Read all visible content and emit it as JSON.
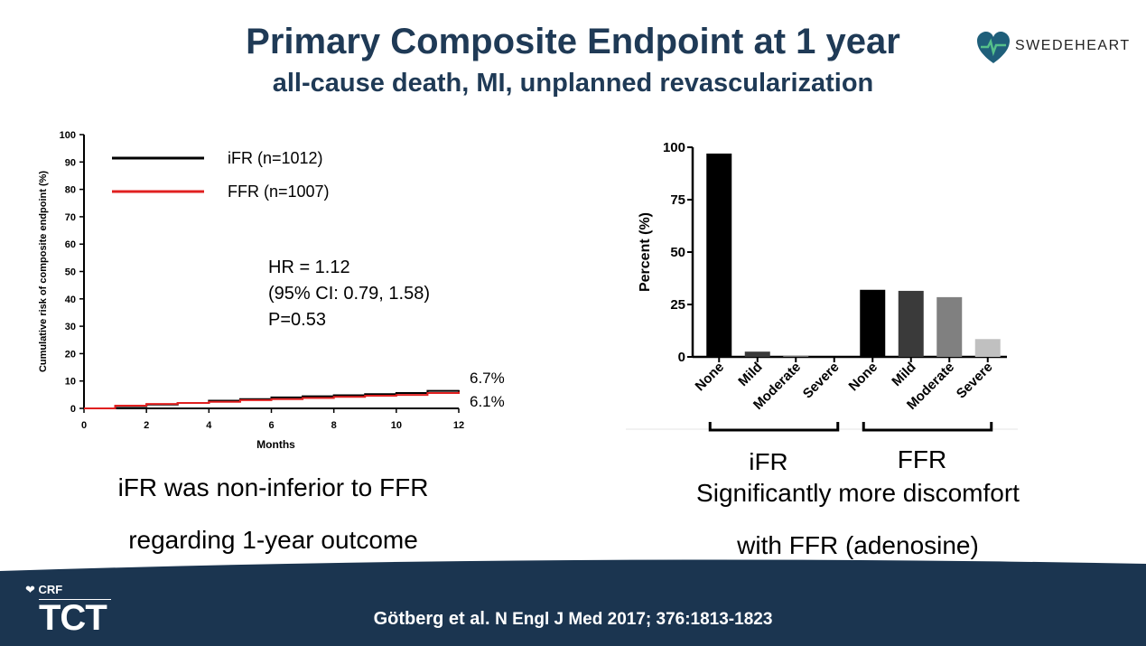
{
  "slide": {
    "title": "Primary Composite Endpoint at 1 year",
    "subtitle": "all-cause death, MI, unplanned revascularization",
    "logo_text": "SWEDEHEART",
    "left_caption_line1": "iFR was non-inferior to FFR",
    "left_caption_line2": "regarding 1-year outcome",
    "right_caption_line1": "Significantly more discomfort",
    "right_caption_line2": "with FFR (adenosine)",
    "footer_ref_bold": "Götberg et al.",
    "footer_ref_journal": "N Engl J Med 2017; 376:1813-1823",
    "footer_brand_small": "CRF",
    "footer_brand_large": "TCT",
    "colors": {
      "title": "#1f3a56",
      "footer": "#1b3550",
      "logo_heart": "#1f5f7a",
      "logo_accent": "#55c08a"
    }
  },
  "chart_data": [
    {
      "type": "line",
      "xlabel": "Months",
      "ylabel": "Cumulative risk of composite endpoint (%)",
      "xlim": [
        0,
        12
      ],
      "ylim": [
        0,
        100
      ],
      "x_ticks": [
        0,
        2,
        4,
        6,
        8,
        10,
        12
      ],
      "y_ticks": [
        0,
        10,
        20,
        30,
        40,
        50,
        60,
        70,
        80,
        90,
        100
      ],
      "legend": "top-left",
      "series": [
        {
          "name": "iFR  (n=1012)",
          "color": "#000000",
          "x": [
            0,
            1,
            2,
            3,
            4,
            5,
            6,
            7,
            8,
            9,
            10,
            11,
            12
          ],
          "y": [
            0,
            0.8,
            1.4,
            2.0,
            2.8,
            3.4,
            4.0,
            4.4,
            4.8,
            5.2,
            5.6,
            6.4,
            6.7
          ]
        },
        {
          "name": "FFR (n=1007)",
          "color": "#e02020",
          "x": [
            0,
            1,
            2,
            3,
            4,
            5,
            6,
            7,
            8,
            9,
            10,
            11,
            12
          ],
          "y": [
            0,
            1.0,
            1.6,
            2.0,
            2.4,
            3.0,
            3.4,
            3.8,
            4.2,
            4.6,
            4.9,
            5.6,
            6.1
          ]
        }
      ],
      "end_labels": [
        "6.7%",
        "6.1%"
      ],
      "annotation": [
        "HR  = 1.12",
        "(95% CI: 0.79, 1.58)",
        "P=0.53"
      ]
    },
    {
      "type": "bar",
      "ylabel": "Percent (%)",
      "ylim": [
        0,
        100
      ],
      "y_ticks": [
        0,
        25,
        50,
        75,
        100
      ],
      "categories": [
        "None",
        "Mild",
        "Moderate",
        "Severe",
        "None",
        "Mild",
        "Moderate",
        "Severe"
      ],
      "values": [
        97,
        2.5,
        0.5,
        0,
        32,
        31.5,
        28.5,
        8.5
      ],
      "bar_colors": [
        "#000000",
        "#3a3a3a",
        "#777777",
        "#bbbbbb",
        "#000000",
        "#3a3a3a",
        "#808080",
        "#c0c0c0"
      ],
      "groups": [
        {
          "name": "iFR",
          "from": 0,
          "to": 3
        },
        {
          "name": "FFR",
          "from": 4,
          "to": 7
        }
      ]
    }
  ]
}
